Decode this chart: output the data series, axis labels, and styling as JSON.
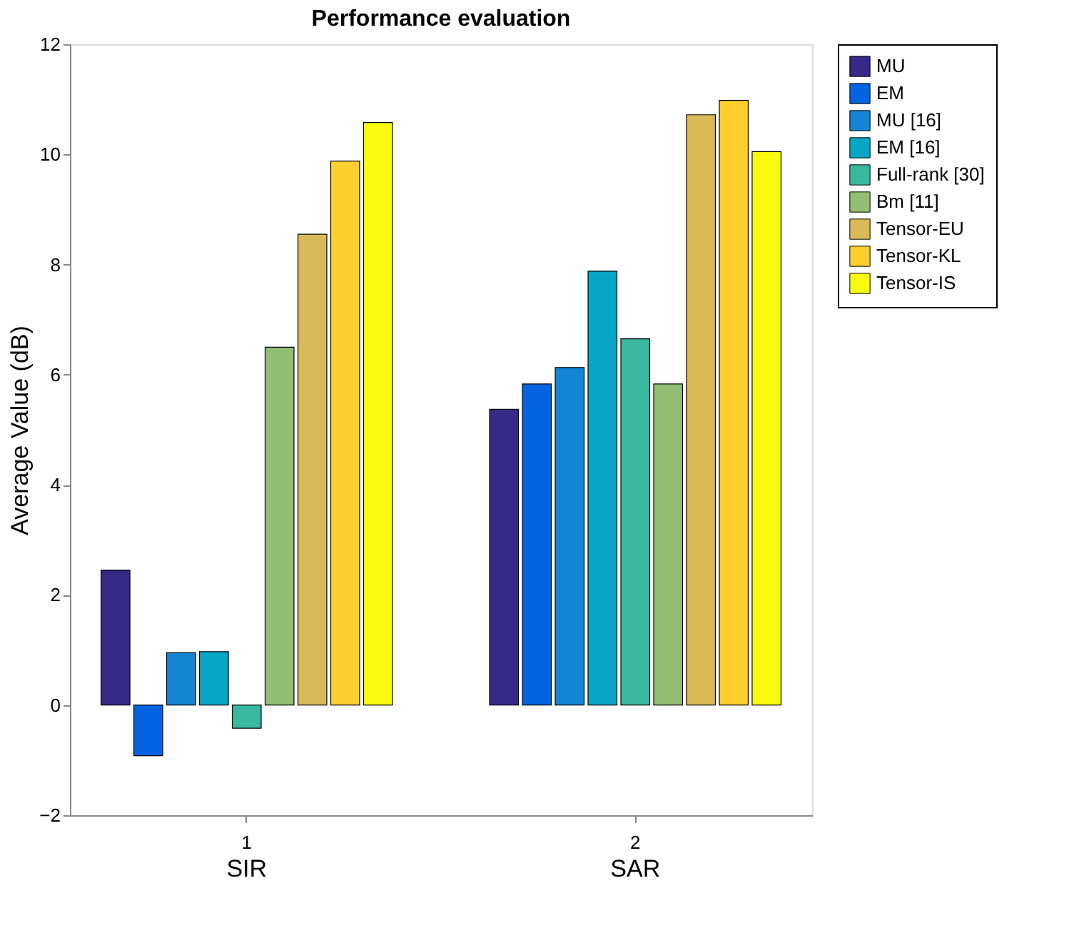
{
  "chart_data": {
    "type": "bar",
    "title": "Performance evaluation",
    "ylabel": "Average Value (dB)",
    "categories": [
      "1",
      "2"
    ],
    "annotations": [
      "SIR",
      "SAR"
    ],
    "series": [
      {
        "name": "MU",
        "color": "#352a87",
        "values": [
          2.45,
          5.37
        ]
      },
      {
        "name": "EM",
        "color": "#0363e1",
        "values": [
          -0.92,
          5.83
        ]
      },
      {
        "name": "MU [16]",
        "color": "#1485d4",
        "values": [
          0.95,
          6.13
        ]
      },
      {
        "name": "EM [16]",
        "color": "#06a7c6",
        "values": [
          0.97,
          7.88
        ]
      },
      {
        "name": "Full-rank [30]",
        "color": "#38b99e",
        "values": [
          -0.42,
          6.65
        ]
      },
      {
        "name": "Bm [11]",
        "color": "#92bf73",
        "values": [
          6.5,
          5.83
        ]
      },
      {
        "name": "Tensor-EU",
        "color": "#d9ba56",
        "values": [
          8.55,
          10.72
        ]
      },
      {
        "name": "Tensor-KL",
        "color": "#fcce2e",
        "values": [
          9.88,
          10.98
        ]
      },
      {
        "name": "Tensor-IS",
        "color": "#f9fb0e",
        "values": [
          10.58,
          10.05
        ]
      }
    ],
    "ylim": [
      -2,
      12
    ],
    "yticks": [
      -2,
      0,
      2,
      4,
      6,
      8,
      10,
      12
    ],
    "grid": false,
    "legend": "right"
  }
}
